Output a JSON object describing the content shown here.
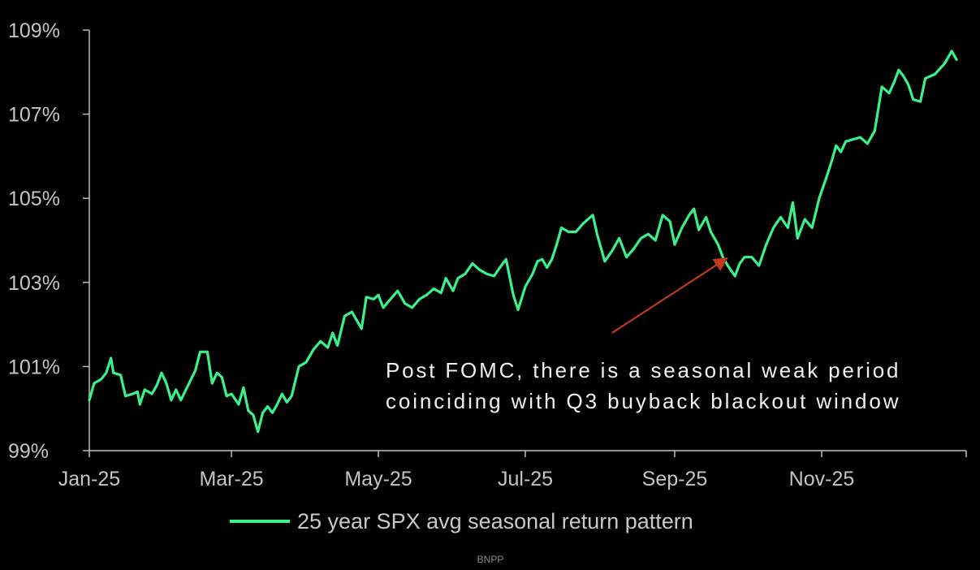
{
  "chart_data": {
    "type": "line",
    "xlabel": "",
    "ylabel": "",
    "y_ticks": [
      "99%",
      "101%",
      "103%",
      "105%",
      "107%",
      "109%"
    ],
    "y_tick_values": [
      99,
      101,
      103,
      105,
      107,
      109
    ],
    "ylim": [
      99,
      109
    ],
    "x_ticks": [
      "Jan-25",
      "Mar-25",
      "May-25",
      "Jul-25",
      "Sep-25",
      "Nov-25"
    ],
    "x_tick_dates": [
      "2025-01-01",
      "2025-03-01",
      "2025-05-01",
      "2025-07-01",
      "2025-09-01",
      "2025-11-01"
    ],
    "xlim": [
      "2025-01-01",
      "2025-12-31"
    ],
    "grid": false,
    "legend_position": "bottom-center",
    "series": [
      {
        "name": "25 year SPX avg seasonal return pattern",
        "color": "#39f28c",
        "points": [
          [
            "2025-01-01",
            100.2
          ],
          [
            "2025-01-03",
            100.6
          ],
          [
            "2025-01-06",
            100.7
          ],
          [
            "2025-01-08",
            100.85
          ],
          [
            "2025-01-10",
            101.2
          ],
          [
            "2025-01-11",
            100.85
          ],
          [
            "2025-01-14",
            100.8
          ],
          [
            "2025-01-16",
            100.3
          ],
          [
            "2025-01-19",
            100.35
          ],
          [
            "2025-01-21",
            100.4
          ],
          [
            "2025-01-22",
            100.1
          ],
          [
            "2025-01-24",
            100.45
          ],
          [
            "2025-01-27",
            100.35
          ],
          [
            "2025-01-29",
            100.55
          ],
          [
            "2025-01-31",
            100.85
          ],
          [
            "2025-02-02",
            100.6
          ],
          [
            "2025-02-04",
            100.2
          ],
          [
            "2025-02-06",
            100.45
          ],
          [
            "2025-02-08",
            100.2
          ],
          [
            "2025-02-11",
            100.55
          ],
          [
            "2025-02-14",
            100.9
          ],
          [
            "2025-02-16",
            101.35
          ],
          [
            "2025-02-19",
            101.35
          ],
          [
            "2025-02-21",
            100.6
          ],
          [
            "2025-02-23",
            100.85
          ],
          [
            "2025-02-25",
            100.75
          ],
          [
            "2025-02-27",
            100.3
          ],
          [
            "2025-03-01",
            100.35
          ],
          [
            "2025-03-04",
            100.1
          ],
          [
            "2025-03-06",
            100.5
          ],
          [
            "2025-03-08",
            99.95
          ],
          [
            "2025-03-10",
            99.85
          ],
          [
            "2025-03-12",
            99.45
          ],
          [
            "2025-03-14",
            99.9
          ],
          [
            "2025-03-16",
            100.05
          ],
          [
            "2025-03-18",
            99.9
          ],
          [
            "2025-03-20",
            100.1
          ],
          [
            "2025-03-22",
            100.35
          ],
          [
            "2025-03-24",
            100.15
          ],
          [
            "2025-03-26",
            100.3
          ],
          [
            "2025-03-29",
            101.0
          ],
          [
            "2025-04-01",
            101.1
          ],
          [
            "2025-04-04",
            101.4
          ],
          [
            "2025-04-07",
            101.6
          ],
          [
            "2025-04-10",
            101.45
          ],
          [
            "2025-04-12",
            101.8
          ],
          [
            "2025-04-14",
            101.5
          ],
          [
            "2025-04-17",
            102.2
          ],
          [
            "2025-04-20",
            102.3
          ],
          [
            "2025-04-22",
            102.1
          ],
          [
            "2025-04-24",
            101.9
          ],
          [
            "2025-04-26",
            102.65
          ],
          [
            "2025-04-29",
            102.6
          ],
          [
            "2025-05-01",
            102.7
          ],
          [
            "2025-05-03",
            102.4
          ],
          [
            "2025-05-06",
            102.6
          ],
          [
            "2025-05-09",
            102.8
          ],
          [
            "2025-05-12",
            102.5
          ],
          [
            "2025-05-15",
            102.4
          ],
          [
            "2025-05-18",
            102.6
          ],
          [
            "2025-05-21",
            102.7
          ],
          [
            "2025-05-24",
            102.85
          ],
          [
            "2025-05-27",
            102.75
          ],
          [
            "2025-05-29",
            103.1
          ],
          [
            "2025-06-01",
            102.8
          ],
          [
            "2025-06-03",
            103.1
          ],
          [
            "2025-06-06",
            103.2
          ],
          [
            "2025-06-09",
            103.45
          ],
          [
            "2025-06-12",
            103.3
          ],
          [
            "2025-06-15",
            103.2
          ],
          [
            "2025-06-18",
            103.15
          ],
          [
            "2025-06-21",
            103.4
          ],
          [
            "2025-06-23",
            103.55
          ],
          [
            "2025-06-26",
            102.7
          ],
          [
            "2025-06-28",
            102.35
          ],
          [
            "2025-07-01",
            102.9
          ],
          [
            "2025-07-04",
            103.2
          ],
          [
            "2025-07-06",
            103.5
          ],
          [
            "2025-07-08",
            103.55
          ],
          [
            "2025-07-10",
            103.35
          ],
          [
            "2025-07-12",
            103.55
          ],
          [
            "2025-07-14",
            103.9
          ],
          [
            "2025-07-16",
            104.3
          ],
          [
            "2025-07-19",
            104.2
          ],
          [
            "2025-07-22",
            104.2
          ],
          [
            "2025-07-25",
            104.4
          ],
          [
            "2025-07-29",
            104.6
          ],
          [
            "2025-07-31",
            104.1
          ],
          [
            "2025-08-03",
            103.5
          ],
          [
            "2025-08-06",
            103.75
          ],
          [
            "2025-08-09",
            104.05
          ],
          [
            "2025-08-12",
            103.6
          ],
          [
            "2025-08-15",
            103.8
          ],
          [
            "2025-08-18",
            104.05
          ],
          [
            "2025-08-21",
            104.15
          ],
          [
            "2025-08-24",
            104.0
          ],
          [
            "2025-08-27",
            104.6
          ],
          [
            "2025-08-30",
            104.45
          ],
          [
            "2025-09-01",
            103.9
          ],
          [
            "2025-09-04",
            104.3
          ],
          [
            "2025-09-07",
            104.6
          ],
          [
            "2025-09-09",
            104.75
          ],
          [
            "2025-09-11",
            104.25
          ],
          [
            "2025-09-14",
            104.55
          ],
          [
            "2025-09-16",
            104.2
          ],
          [
            "2025-09-19",
            103.9
          ],
          [
            "2025-09-21",
            103.6
          ],
          [
            "2025-09-23",
            103.4
          ],
          [
            "2025-09-26",
            103.15
          ],
          [
            "2025-09-28",
            103.45
          ],
          [
            "2025-09-30",
            103.6
          ],
          [
            "2025-10-03",
            103.6
          ],
          [
            "2025-10-06",
            103.4
          ],
          [
            "2025-10-09",
            103.9
          ],
          [
            "2025-10-12",
            104.3
          ],
          [
            "2025-10-15",
            104.55
          ],
          [
            "2025-10-18",
            104.3
          ],
          [
            "2025-10-20",
            104.9
          ],
          [
            "2025-10-22",
            104.05
          ],
          [
            "2025-10-25",
            104.5
          ],
          [
            "2025-10-28",
            104.3
          ],
          [
            "2025-10-31",
            105.0
          ],
          [
            "2025-11-03",
            105.5
          ],
          [
            "2025-11-05",
            105.85
          ],
          [
            "2025-11-07",
            106.25
          ],
          [
            "2025-11-09",
            106.1
          ],
          [
            "2025-11-11",
            106.35
          ],
          [
            "2025-11-14",
            106.4
          ],
          [
            "2025-11-17",
            106.45
          ],
          [
            "2025-11-20",
            106.3
          ],
          [
            "2025-11-23",
            106.6
          ],
          [
            "2025-11-26",
            107.65
          ],
          [
            "2025-11-29",
            107.5
          ],
          [
            "2025-12-01",
            107.75
          ],
          [
            "2025-12-03",
            108.05
          ],
          [
            "2025-12-05",
            107.9
          ],
          [
            "2025-12-07",
            107.7
          ],
          [
            "2025-12-09",
            107.35
          ],
          [
            "2025-12-12",
            107.3
          ],
          [
            "2025-12-14",
            107.85
          ],
          [
            "2025-12-18",
            107.95
          ],
          [
            "2025-12-22",
            108.2
          ],
          [
            "2025-12-25",
            108.5
          ],
          [
            "2025-12-27",
            108.3
          ]
        ]
      }
    ],
    "annotations": [
      {
        "lines": [
          "Post FOMC, there is a seasonal weak period",
          "coinciding with Q3 buyback blackout window"
        ],
        "arrow_color": "#c0391b",
        "arrow_from": [
          "2025-08-06",
          101.8
        ],
        "arrow_to": [
          "2025-09-22",
          103.55
        ]
      }
    ]
  },
  "source": "BNPP"
}
